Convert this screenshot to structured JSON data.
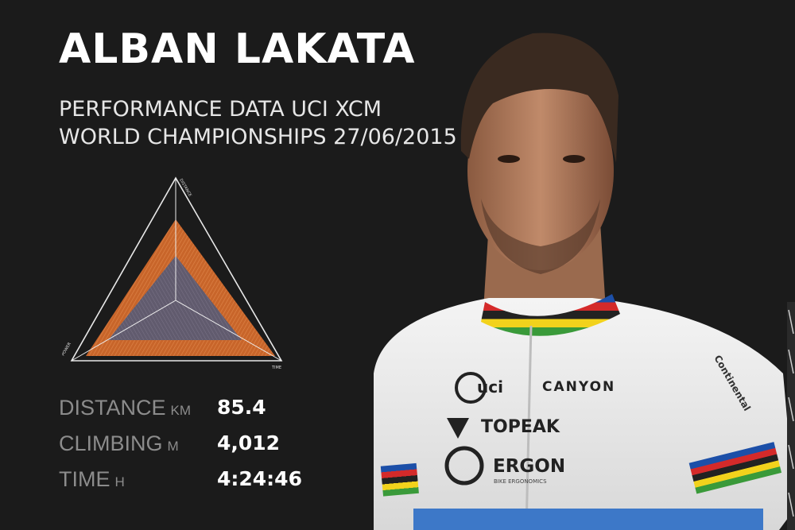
{
  "header": {
    "title": "ALBAN LAKATA",
    "subtitle_line1": "PERFORMANCE DATA UCI XCM",
    "subtitle_line2": "WORLD CHAMPIONSHIPS 27/06/2015"
  },
  "radar": {
    "axes": [
      "DISTANCE",
      "POWER",
      "TIME"
    ],
    "outer_color": "#c8652a",
    "inner_color": "#6a6478"
  },
  "stats": [
    {
      "label": "DISTANCE",
      "unit": "KM",
      "value": "85.4"
    },
    {
      "label": "CLIMBING",
      "unit": "M",
      "value": "4,012"
    },
    {
      "label": "TIME",
      "unit": "H",
      "value": "4:24:46"
    }
  ],
  "jersey": {
    "brand_uci": "uci",
    "brand_canyon": "CANYON",
    "brand_topeak": "TOPEAK",
    "brand_ergon": "ERGON",
    "brand_ergon_sub": "BIKE ERGONOMICS",
    "brand_continental": "Continental"
  }
}
